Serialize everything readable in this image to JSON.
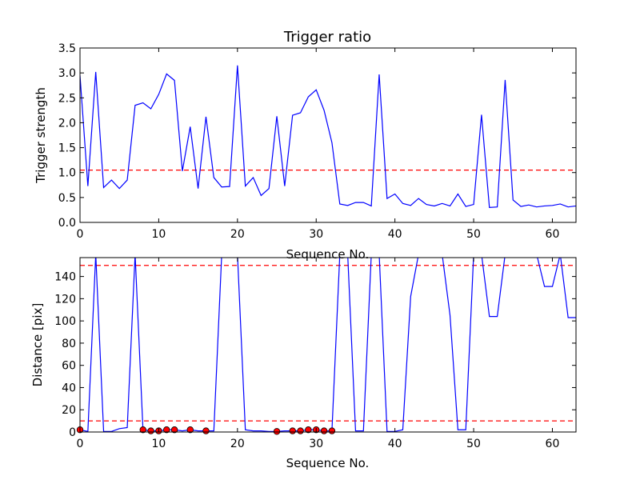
{
  "chart_data": [
    {
      "type": "line",
      "title": "Trigger ratio",
      "xlabel": "Sequence No.",
      "ylabel": "Trigger strength",
      "xlim": [
        0,
        63
      ],
      "ylim": [
        0,
        3.5
      ],
      "xticks": [
        0,
        10,
        20,
        30,
        40,
        50,
        60
      ],
      "yticks": [
        0.0,
        0.5,
        1.0,
        1.5,
        2.0,
        2.5,
        3.0,
        3.5
      ],
      "yticks_labels": [
        "0.0",
        "0.5",
        "1.0",
        "1.5",
        "2.0",
        "2.5",
        "3.0",
        "3.5"
      ],
      "grid": false,
      "threshold": {
        "value": 1.05,
        "color": "#ff0000",
        "style": "dashed"
      },
      "series": [
        {
          "color": "#0000ff",
          "x": [
            0,
            1,
            2,
            3,
            4,
            5,
            6,
            7,
            8,
            9,
            10,
            11,
            12,
            13,
            14,
            15,
            16,
            17,
            18,
            19,
            20,
            21,
            22,
            23,
            24,
            25,
            26,
            27,
            28,
            29,
            30,
            31,
            32,
            33,
            34,
            35,
            36,
            37,
            38,
            39,
            40,
            41,
            42,
            43,
            44,
            45,
            46,
            47,
            48,
            49,
            50,
            51,
            52,
            53,
            54,
            55,
            56,
            57,
            58,
            59,
            60,
            61,
            62,
            63
          ],
          "values": [
            2.95,
            0.73,
            3.02,
            0.7,
            0.85,
            0.68,
            0.85,
            2.35,
            2.4,
            2.28,
            2.57,
            2.98,
            2.85,
            1.03,
            1.92,
            0.68,
            2.12,
            0.9,
            0.71,
            0.72,
            3.15,
            0.73,
            0.9,
            0.54,
            0.68,
            2.13,
            0.73,
            2.15,
            2.2,
            2.52,
            2.66,
            2.25,
            1.6,
            0.37,
            0.34,
            0.4,
            0.4,
            0.33,
            2.97,
            0.48,
            0.57,
            0.38,
            0.34,
            0.48,
            0.36,
            0.33,
            0.38,
            0.33,
            0.57,
            0.32,
            0.36,
            2.16,
            0.3,
            0.31,
            2.86,
            0.45,
            0.32,
            0.35,
            0.31,
            0.33,
            0.34,
            0.37,
            0.31,
            0.33
          ]
        }
      ]
    },
    {
      "type": "line",
      "title": "",
      "xlabel": "Sequence No.",
      "ylabel": "Distance [pix]",
      "xlim": [
        0,
        63
      ],
      "ylim": [
        0,
        157
      ],
      "xticks": [
        0,
        10,
        20,
        30,
        40,
        50,
        60
      ],
      "yticks": [
        0,
        20,
        40,
        60,
        80,
        100,
        120,
        140
      ],
      "yticks_labels": [
        "0",
        "20",
        "40",
        "60",
        "80",
        "100",
        "120",
        "140"
      ],
      "grid": false,
      "thresholds": [
        {
          "value": 150,
          "color": "#ff0000",
          "style": "dashed"
        },
        {
          "value": 10,
          "color": "#ff0000",
          "style": "dashed"
        }
      ],
      "series": [
        {
          "color": "#0000ff",
          "x": [
            0,
            1,
            2,
            3,
            4,
            5,
            6,
            7,
            8,
            9,
            10,
            11,
            12,
            13,
            14,
            15,
            16,
            17,
            18,
            19,
            20,
            21,
            22,
            23,
            24,
            25,
            26,
            27,
            28,
            29,
            30,
            31,
            32,
            33,
            34,
            35,
            36,
            37,
            38,
            39,
            40,
            41,
            42,
            43,
            44,
            45,
            46,
            47,
            48,
            49,
            50,
            51,
            52,
            53,
            54,
            55,
            56,
            57,
            58,
            59,
            60,
            61,
            62,
            63
          ],
          "values": [
            2,
            0.5,
            160,
            0.5,
            0.5,
            3,
            4,
            160,
            2,
            1,
            1,
            2,
            2,
            1,
            2,
            1,
            1,
            1,
            160,
            160,
            160,
            2,
            1,
            1,
            0.5,
            0.5,
            1,
            1,
            1,
            2,
            2,
            1,
            1,
            160,
            160,
            1,
            1,
            160,
            160,
            0.5,
            0.5,
            2,
            122,
            160,
            160,
            160,
            160,
            105,
            2,
            2,
            160,
            160,
            104,
            104,
            160,
            160,
            160,
            160,
            160,
            131,
            131,
            160,
            103,
            103
          ]
        }
      ],
      "markers": {
        "color": "#ff0000",
        "x": [
          0,
          8,
          9,
          10,
          11,
          12,
          14,
          16,
          25,
          27,
          28,
          29,
          30,
          31,
          32
        ],
        "y": [
          2,
          2,
          1,
          1,
          2,
          2,
          2,
          1,
          0.5,
          1,
          1,
          2,
          2,
          1,
          1
        ]
      }
    }
  ]
}
